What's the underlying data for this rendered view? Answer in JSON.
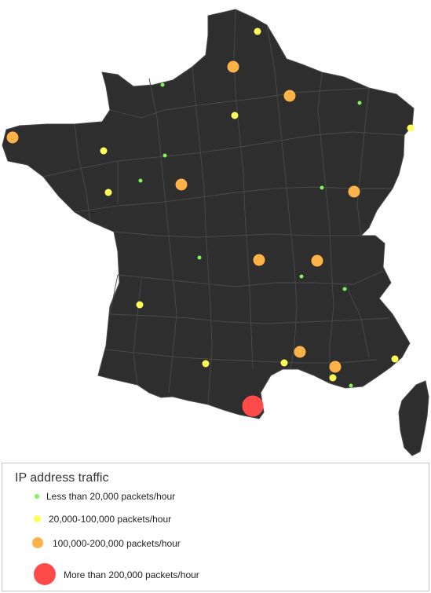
{
  "colors": {
    "land": "#2e2e2e",
    "borders": "#4a4a4a",
    "green": "#7ef55a",
    "yellow": "#ffff55",
    "orange": "#ffb247",
    "red": "#ff4a4a"
  },
  "legend": {
    "title": "IP address traffic",
    "items": [
      {
        "label": "Less than 20,000 packets/hour",
        "color_key": "green"
      },
      {
        "label": "20,000-100,000 packets/hour",
        "color_key": "yellow"
      },
      {
        "label": "100,000-200,000 packets/hour",
        "color_key": "orange"
      },
      {
        "label": "More than 200,000 packets/hour",
        "color_key": "red"
      }
    ]
  },
  "traffic_points": [
    {
      "category": "yellow"
    },
    {
      "category": "orange"
    },
    {
      "category": "green"
    },
    {
      "category": "orange"
    },
    {
      "category": "yellow"
    },
    {
      "category": "green"
    },
    {
      "category": "yellow"
    },
    {
      "category": "orange"
    },
    {
      "category": "yellow"
    },
    {
      "category": "green"
    },
    {
      "category": "green"
    },
    {
      "category": "yellow"
    },
    {
      "category": "orange"
    },
    {
      "category": "green"
    },
    {
      "category": "orange"
    },
    {
      "category": "green"
    },
    {
      "category": "orange"
    },
    {
      "category": "orange"
    },
    {
      "category": "green"
    },
    {
      "category": "green"
    },
    {
      "category": "yellow"
    },
    {
      "category": "orange"
    },
    {
      "category": "yellow"
    },
    {
      "category": "yellow"
    },
    {
      "category": "orange"
    },
    {
      "category": "yellow"
    },
    {
      "category": "green"
    },
    {
      "category": "yellow"
    },
    {
      "category": "red"
    }
  ]
}
